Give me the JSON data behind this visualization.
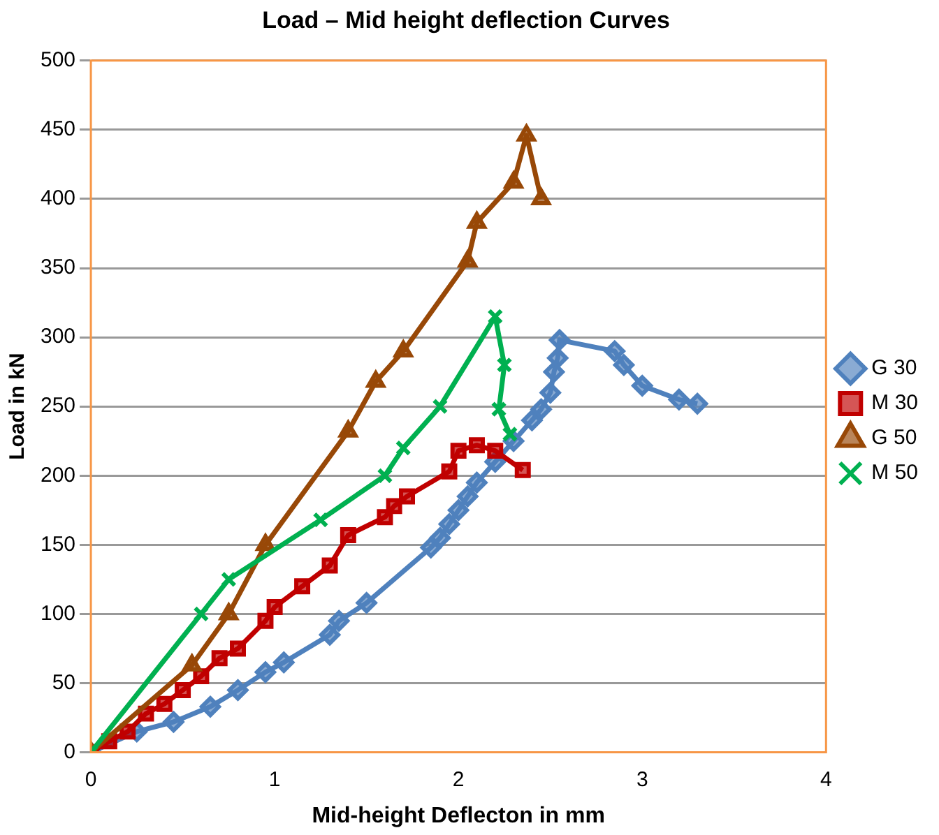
{
  "chart_data": {
    "type": "line",
    "title": "Load – Mid height deflection Curves",
    "xlabel": "Mid-height Deflecton in mm",
    "ylabel": "Load in kN",
    "xlim": [
      0,
      4
    ],
    "xticks": [
      0,
      1,
      2,
      3,
      4
    ],
    "ylim": [
      0,
      500
    ],
    "yticks": [
      0,
      50,
      100,
      150,
      200,
      250,
      300,
      350,
      400,
      450,
      500
    ],
    "grid": "y",
    "legend": "right",
    "series": [
      {
        "name": "G 30",
        "color": "#4f81bd",
        "marker": "diamond",
        "x": [
          0,
          0.25,
          0.45,
          0.65,
          0.8,
          0.95,
          1.05,
          1.3,
          1.35,
          1.5,
          1.85,
          1.9,
          1.95,
          2.0,
          2.05,
          2.1,
          2.2,
          2.3,
          2.4,
          2.45,
          2.5,
          2.52,
          2.54,
          2.55,
          2.85,
          2.9,
          3.0,
          3.2,
          3.3
        ],
        "values": [
          0,
          15,
          22,
          33,
          45,
          58,
          65,
          85,
          95,
          108,
          148,
          155,
          165,
          175,
          185,
          195,
          210,
          225,
          240,
          248,
          260,
          275,
          285,
          298,
          290,
          280,
          265,
          255,
          252
        ]
      },
      {
        "name": "M 30",
        "color": "#c00000",
        "marker": "square",
        "x": [
          0,
          0.1,
          0.2,
          0.3,
          0.4,
          0.5,
          0.6,
          0.7,
          0.8,
          0.95,
          1.0,
          1.15,
          1.3,
          1.4,
          1.6,
          1.65,
          1.72,
          1.95,
          2.0,
          2.1,
          2.2,
          2.35
        ],
        "values": [
          0,
          8,
          15,
          28,
          35,
          45,
          55,
          68,
          75,
          95,
          105,
          120,
          135,
          157,
          170,
          178,
          185,
          203,
          218,
          222,
          218,
          204
        ]
      },
      {
        "name": "G 50",
        "color": "#984807",
        "marker": "triangle",
        "x": [
          0,
          0.55,
          0.75,
          0.95,
          1.4,
          1.55,
          1.7,
          2.05,
          2.1,
          2.3,
          2.37,
          2.45
        ],
        "values": [
          0,
          63,
          100,
          150,
          232,
          268,
          290,
          355,
          383,
          412,
          446,
          400
        ]
      },
      {
        "name": "M 50",
        "color": "#00b050",
        "marker": "cross",
        "x": [
          0,
          0.6,
          0.75,
          1.25,
          1.6,
          1.7,
          1.9,
          2.2,
          2.25,
          2.22,
          2.28
        ],
        "values": [
          0,
          100,
          125,
          168,
          200,
          220,
          250,
          315,
          280,
          248,
          230
        ]
      }
    ]
  }
}
